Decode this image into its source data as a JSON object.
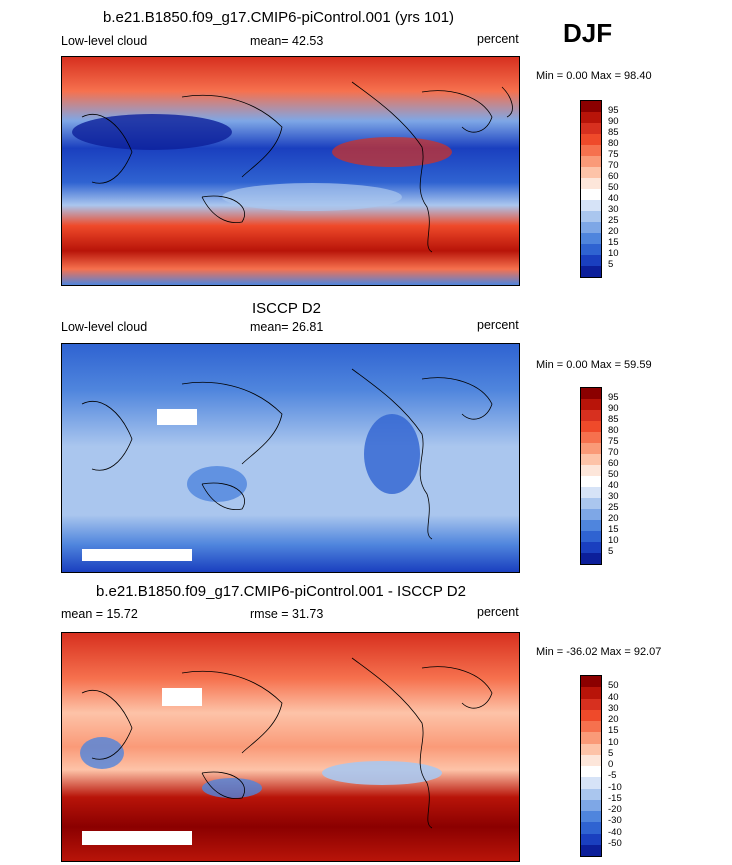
{
  "season": "DJF",
  "panels": [
    {
      "title": "b.e21.B1850.f09_g17.CMIP6-piControl.001 (yrs 101)",
      "left": "Low-level cloud",
      "center": "mean=  42.53",
      "right": "percent",
      "minmax": "Min =   0.00 Max =  98.40",
      "colorbar_ticks": [
        "95",
        "90",
        "85",
        "80",
        "75",
        "70",
        "60",
        "50",
        "40",
        "30",
        "25",
        "20",
        "15",
        "10",
        "5"
      ]
    },
    {
      "title": "ISCCP D2",
      "left": "Low-level cloud",
      "center": "mean=  26.81",
      "right": "percent",
      "minmax": "Min =   0.00 Max =  59.59",
      "colorbar_ticks": [
        "95",
        "90",
        "85",
        "80",
        "75",
        "70",
        "60",
        "50",
        "40",
        "30",
        "25",
        "20",
        "15",
        "10",
        "5"
      ]
    },
    {
      "title": "b.e21.B1850.f09_g17.CMIP6-piControl.001 - ISCCP D2",
      "left": "mean =  15.72",
      "center": "rmse =  31.73",
      "right": "percent",
      "minmax": "Min = -36.02 Max =  92.07",
      "colorbar_ticks": [
        "50",
        "40",
        "30",
        "20",
        "15",
        "10",
        "5",
        "0",
        "-5",
        "-10",
        "-15",
        "-20",
        "-30",
        "-40",
        "-50"
      ]
    }
  ],
  "colors": {
    "abs_scale": [
      "#8b0000",
      "#b81409",
      "#d7301f",
      "#ef4a2a",
      "#f6714e",
      "#fa9a78",
      "#fdc3a8",
      "#fde6da",
      "#ffffff",
      "#d6e3f7",
      "#aac6ee",
      "#7ea7e6",
      "#4f85dd",
      "#2f63d1",
      "#1a3fbf",
      "#0c1f9a"
    ],
    "diff_scale": [
      "#8b0000",
      "#b81409",
      "#d7301f",
      "#ef4a2a",
      "#f6714e",
      "#fa9a78",
      "#fdc3a8",
      "#fde6da",
      "#ffffff",
      "#d6e3f7",
      "#aac6ee",
      "#7ea7e6",
      "#4f85dd",
      "#2f63d1",
      "#1a3fbf",
      "#0c1f9a"
    ]
  }
}
